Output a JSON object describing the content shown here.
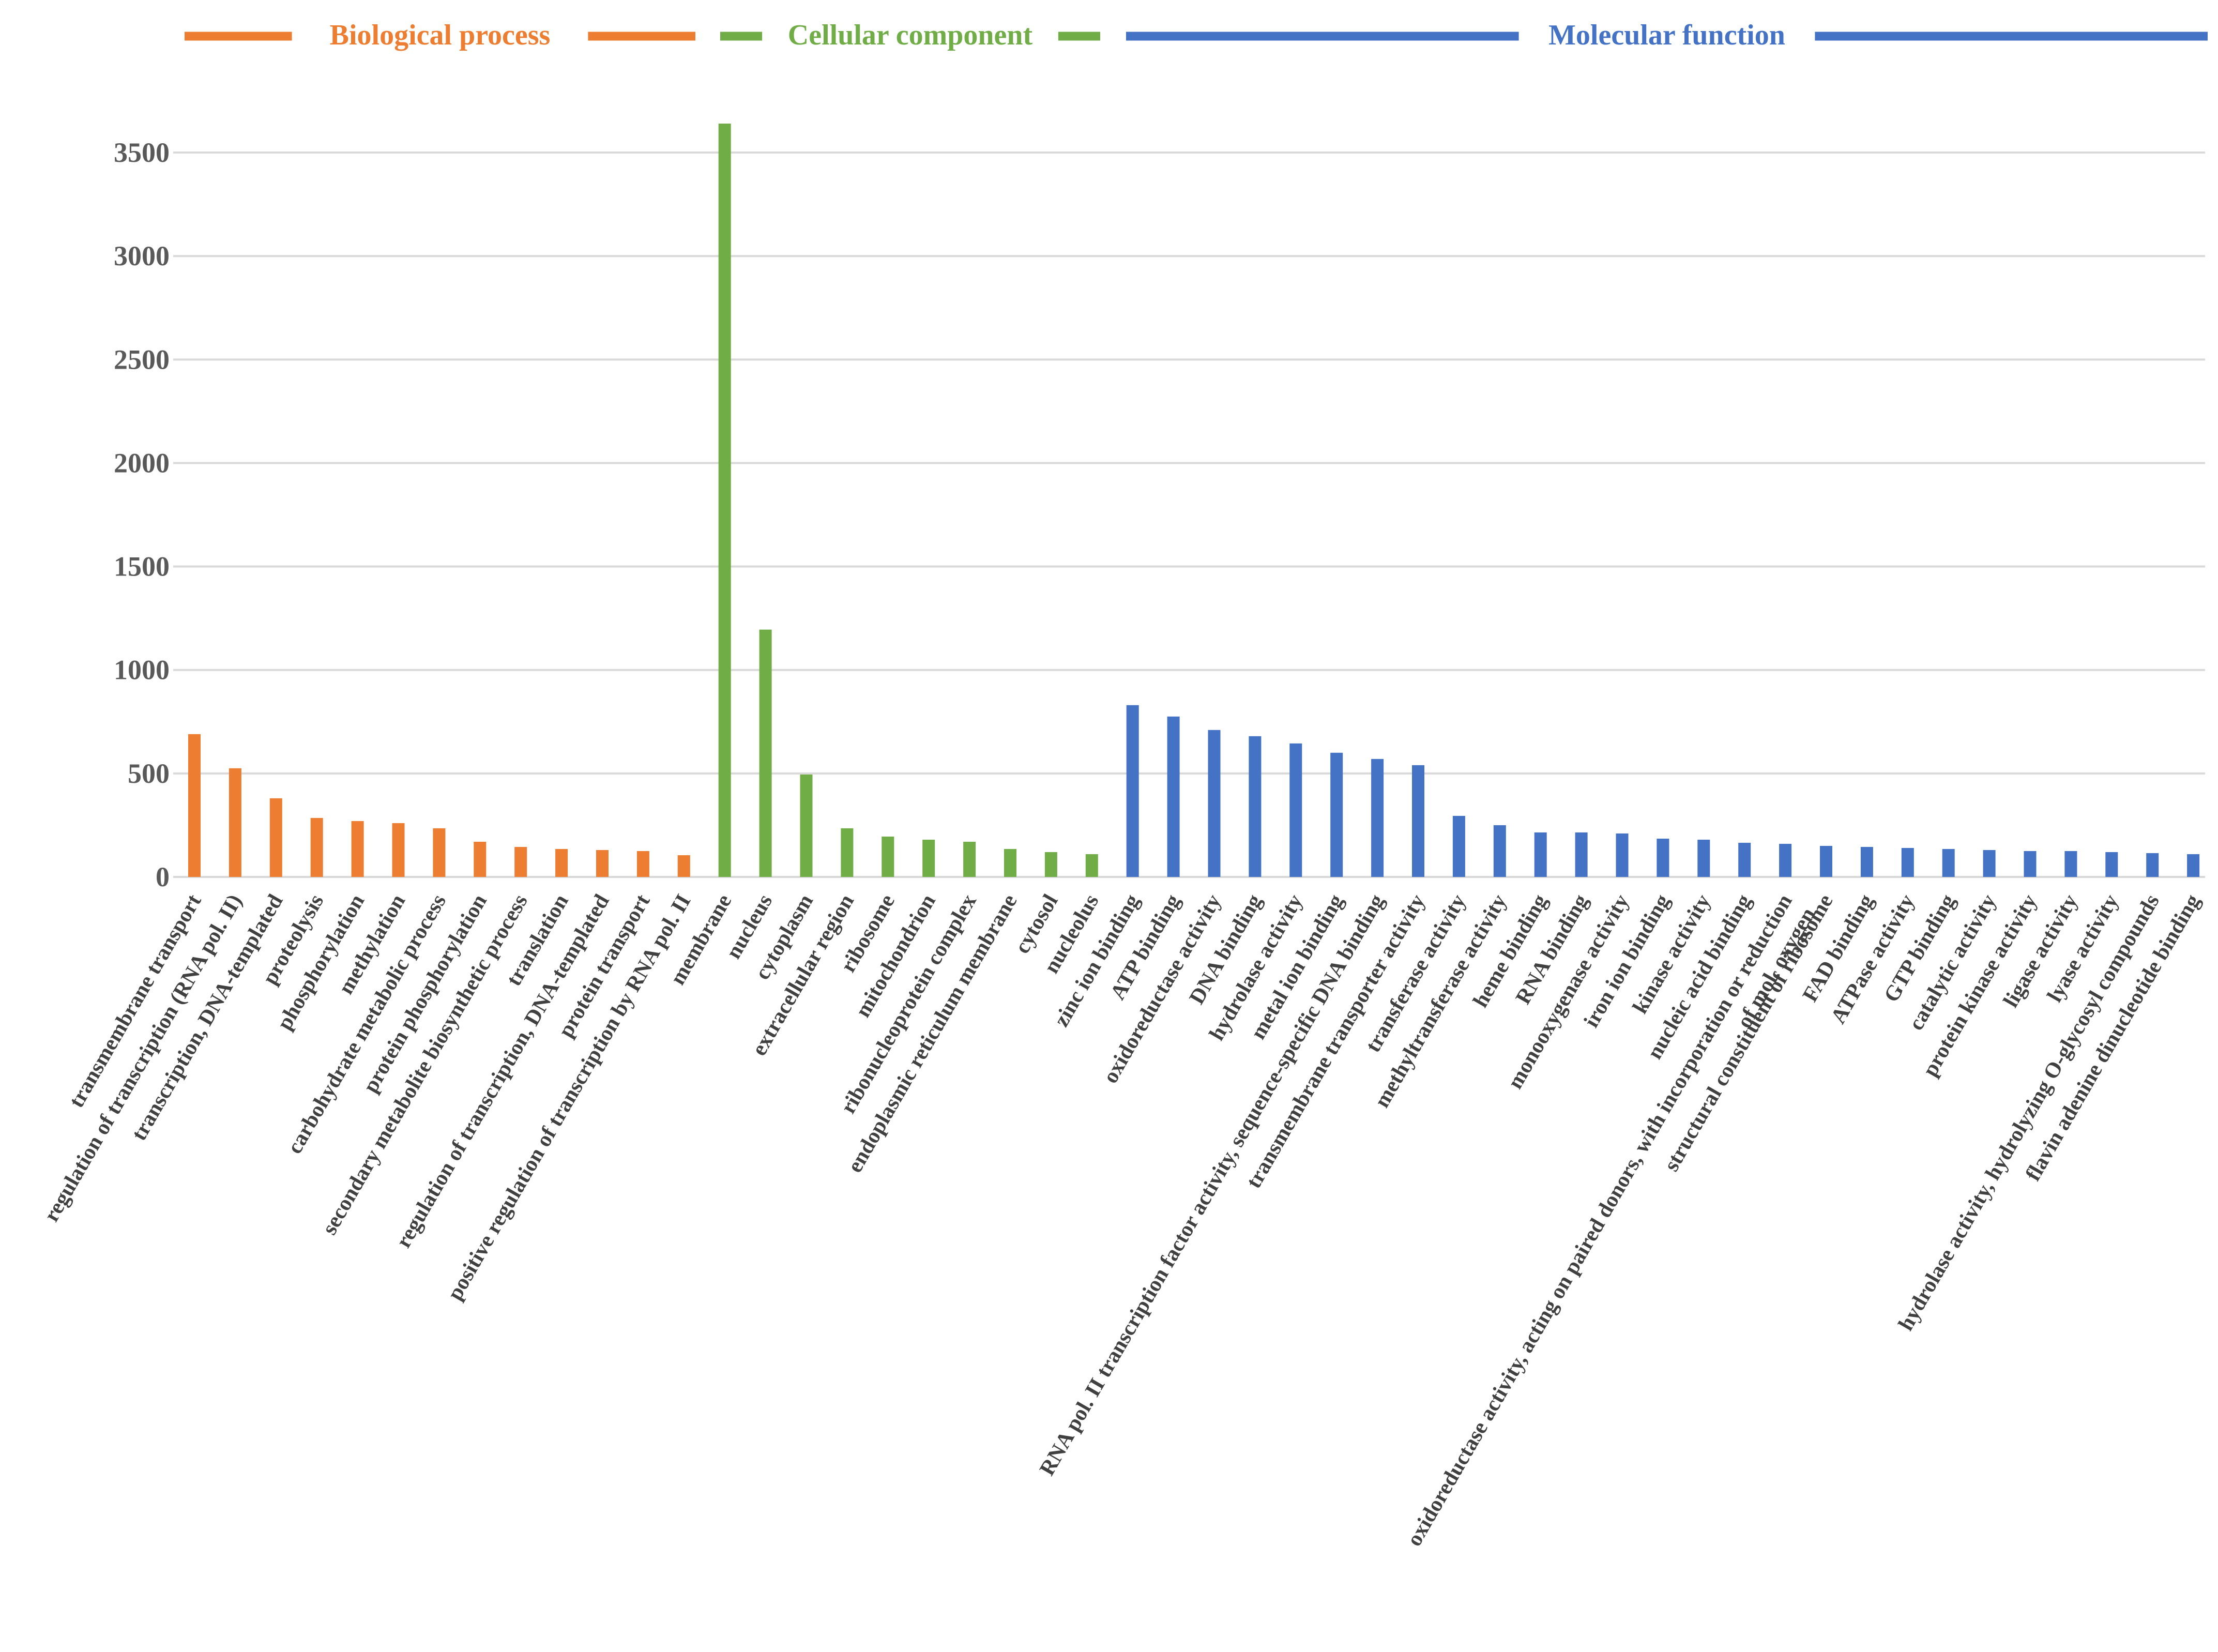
{
  "chart_data": {
    "type": "bar",
    "title": "",
    "xlabel": "",
    "ylabel": "",
    "ylim": [
      0,
      3700
    ],
    "yticks": [
      0,
      500,
      1000,
      1500,
      2000,
      2500,
      3000,
      3500
    ],
    "grid": true,
    "legend_placement": "top",
    "groups": [
      {
        "name": "Biological process",
        "color": "#ED7D31",
        "categories": [
          "transmembrane transport",
          "regulation of transcription (RNA pol. II)",
          "transcription, DNA-templated",
          "proteolysis",
          "phosphorylation",
          "methylation",
          "carbohydrate metabolic process",
          "protein phosphorylation",
          "secondary metabolite biosynthetic process",
          "translation",
          "regulation of transcription, DNA-templated",
          "protein transport",
          "positive regulation of transcription by RNA pol. II"
        ],
        "values": [
          690,
          525,
          380,
          285,
          270,
          260,
          235,
          170,
          145,
          135,
          130,
          125,
          105
        ]
      },
      {
        "name": "Cellular component",
        "color": "#70AD47",
        "categories": [
          "membrane",
          "nucleus",
          "cytoplasm",
          "extracellular region",
          "ribosome",
          "mitochondrion",
          "ribonucleoprotein complex",
          "endoplasmic reticulum membrane",
          "cytosol",
          "nucleolus"
        ],
        "values": [
          3640,
          1195,
          495,
          235,
          195,
          180,
          170,
          135,
          120,
          110
        ]
      },
      {
        "name": "Molecular function",
        "color": "#4472C4",
        "categories": [
          "zinc ion binding",
          "ATP binding",
          "oxidoreductase activity",
          "DNA binding",
          "hydrolase activity",
          "metal ion binding",
          "RNA pol. II transcription factor activity, sequence-specific DNA binding",
          "transmembrane transporter activity",
          "transferase activity",
          "methyltransferase activity",
          "heme binding",
          "RNA binding",
          "monooxygenase activity",
          "iron ion binding",
          "kinase activity",
          "nucleic acid binding",
          "oxidoreductase activity, acting on paired donors, with incorporation or reduction of mol. oxygen",
          "structural constituent of ribosome",
          "FAD binding",
          "ATPase activity",
          "GTP binding",
          "catalytic activity",
          "protein kinase activity",
          "ligase activity",
          "lyase activity",
          "hydrolase activity, hydrolyzing O-glycosyl compounds",
          "flavin adenine dinucleotide binding"
        ],
        "values": [
          830,
          775,
          710,
          680,
          645,
          600,
          570,
          540,
          295,
          250,
          215,
          215,
          210,
          185,
          180,
          165,
          160,
          150,
          145,
          140,
          135,
          130,
          125,
          125,
          120,
          115,
          110
        ]
      }
    ]
  }
}
